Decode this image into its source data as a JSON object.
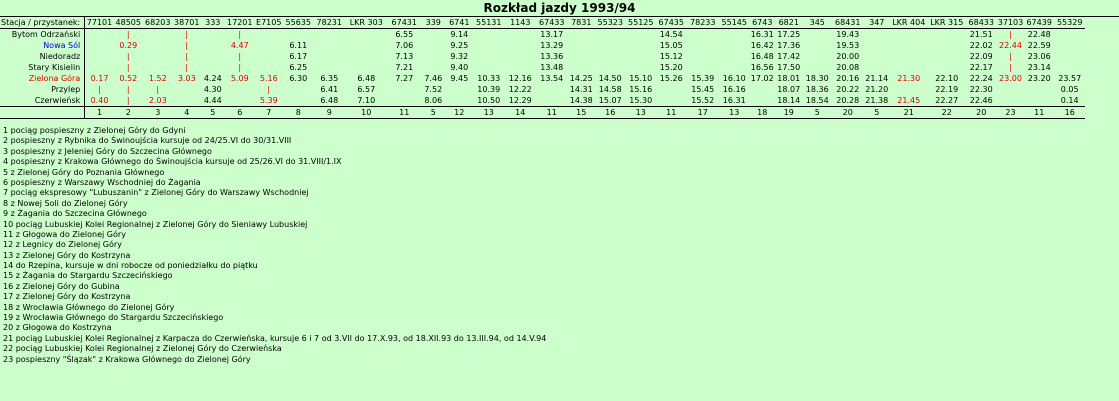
{
  "title": "Rozkład jazdy 1993/94",
  "header_label": "Stacja / przystanek:",
  "trains": [
    "77101",
    "48505",
    "68203",
    "38701",
    "333",
    "17201",
    "E7105",
    "55635",
    "78231",
    "LKR 303",
    "67431",
    "339",
    "6741",
    "55131",
    "1143",
    "67433",
    "7831",
    "55323",
    "55125",
    "67435",
    "78233",
    "55145",
    "6743",
    "6821",
    "345",
    "68431",
    "347",
    "LKR 404",
    "LKR 315",
    "68433",
    "37103",
    "67439",
    "55329"
  ],
  "footnote_refs": [
    "1",
    "2",
    "3",
    "4",
    "5",
    "6",
    "7",
    "8",
    "9",
    "10",
    "11",
    "5",
    "12",
    "13",
    "14",
    "11",
    "15",
    "16",
    "13",
    "11",
    "17",
    "13",
    "18",
    "19",
    "5",
    "20",
    "5",
    "21",
    "22",
    "20",
    "23",
    "11",
    "16"
  ],
  "stations": [
    {
      "name": "Bytom Odrzański",
      "color": "",
      "cells": [
        {
          "v": ""
        },
        {
          "v": "|",
          "c": "red"
        },
        {
          "v": ""
        },
        {
          "v": "|",
          "c": "red"
        },
        {
          "v": ""
        },
        {
          "v": "|",
          "c": "red"
        },
        {
          "v": ""
        },
        {
          "v": ""
        },
        {
          "v": ""
        },
        {
          "v": ""
        },
        {
          "v": "6.55"
        },
        {
          "v": ""
        },
        {
          "v": "9.14"
        },
        {
          "v": ""
        },
        {
          "v": ""
        },
        {
          "v": "13.17"
        },
        {
          "v": ""
        },
        {
          "v": ""
        },
        {
          "v": ""
        },
        {
          "v": "14.54"
        },
        {
          "v": ""
        },
        {
          "v": ""
        },
        {
          "v": "16.31"
        },
        {
          "v": "17.25"
        },
        {
          "v": ""
        },
        {
          "v": "19.43"
        },
        {
          "v": ""
        },
        {
          "v": ""
        },
        {
          "v": ""
        },
        {
          "v": "21.51"
        },
        {
          "v": "|",
          "c": "red"
        },
        {
          "v": "22.48"
        },
        {
          "v": ""
        }
      ]
    },
    {
      "name": "Nowa Sól",
      "color": "blue",
      "cells": [
        {
          "v": ""
        },
        {
          "v": "0.29",
          "c": "red"
        },
        {
          "v": ""
        },
        {
          "v": "|",
          "c": "red"
        },
        {
          "v": ""
        },
        {
          "v": "4.47",
          "c": "red"
        },
        {
          "v": ""
        },
        {
          "v": "6.11"
        },
        {
          "v": ""
        },
        {
          "v": ""
        },
        {
          "v": "7.06"
        },
        {
          "v": ""
        },
        {
          "v": "9.25"
        },
        {
          "v": ""
        },
        {
          "v": ""
        },
        {
          "v": "13.29"
        },
        {
          "v": ""
        },
        {
          "v": ""
        },
        {
          "v": ""
        },
        {
          "v": "15.05"
        },
        {
          "v": ""
        },
        {
          "v": ""
        },
        {
          "v": "16.42"
        },
        {
          "v": "17.36"
        },
        {
          "v": ""
        },
        {
          "v": "19.53"
        },
        {
          "v": ""
        },
        {
          "v": ""
        },
        {
          "v": ""
        },
        {
          "v": "22.02"
        },
        {
          "v": "22.44",
          "c": "red"
        },
        {
          "v": "22.59"
        },
        {
          "v": ""
        }
      ]
    },
    {
      "name": "Niedoradz",
      "color": "",
      "cells": [
        {
          "v": ""
        },
        {
          "v": "|",
          "c": "red"
        },
        {
          "v": ""
        },
        {
          "v": "|",
          "c": "red"
        },
        {
          "v": ""
        },
        {
          "v": "|",
          "c": "red"
        },
        {
          "v": ""
        },
        {
          "v": "6.17"
        },
        {
          "v": ""
        },
        {
          "v": ""
        },
        {
          "v": "7.13"
        },
        {
          "v": ""
        },
        {
          "v": "9.32"
        },
        {
          "v": ""
        },
        {
          "v": ""
        },
        {
          "v": "13.36"
        },
        {
          "v": ""
        },
        {
          "v": ""
        },
        {
          "v": ""
        },
        {
          "v": "15.12"
        },
        {
          "v": ""
        },
        {
          "v": ""
        },
        {
          "v": "16.48"
        },
        {
          "v": "17.42"
        },
        {
          "v": ""
        },
        {
          "v": "20.00"
        },
        {
          "v": ""
        },
        {
          "v": ""
        },
        {
          "v": ""
        },
        {
          "v": "22.09"
        },
        {
          "v": "|",
          "c": "red"
        },
        {
          "v": "23.06"
        },
        {
          "v": ""
        }
      ]
    },
    {
      "name": "Stary Kisielin",
      "color": "",
      "cells": [
        {
          "v": ""
        },
        {
          "v": "|",
          "c": "red"
        },
        {
          "v": ""
        },
        {
          "v": "|",
          "c": "red"
        },
        {
          "v": ""
        },
        {
          "v": "|",
          "c": "red"
        },
        {
          "v": ""
        },
        {
          "v": "6.25"
        },
        {
          "v": ""
        },
        {
          "v": ""
        },
        {
          "v": "7.21"
        },
        {
          "v": ""
        },
        {
          "v": "9.40"
        },
        {
          "v": ""
        },
        {
          "v": ""
        },
        {
          "v": "13.48"
        },
        {
          "v": ""
        },
        {
          "v": ""
        },
        {
          "v": ""
        },
        {
          "v": "15.20"
        },
        {
          "v": ""
        },
        {
          "v": ""
        },
        {
          "v": "16.56"
        },
        {
          "v": "17.50"
        },
        {
          "v": ""
        },
        {
          "v": "20.08"
        },
        {
          "v": ""
        },
        {
          "v": ""
        },
        {
          "v": ""
        },
        {
          "v": "22.17"
        },
        {
          "v": "|",
          "c": "red"
        },
        {
          "v": "23.14"
        },
        {
          "v": ""
        }
      ]
    },
    {
      "name": "Zielona Góra",
      "color": "red",
      "cells": [
        {
          "v": "0.17",
          "c": "red"
        },
        {
          "v": "0.52",
          "c": "red"
        },
        {
          "v": "1.52",
          "c": "red"
        },
        {
          "v": "3.03",
          "c": "red"
        },
        {
          "v": "4.24"
        },
        {
          "v": "5.09",
          "c": "red"
        },
        {
          "v": "5.16",
          "c": "red"
        },
        {
          "v": "6.30"
        },
        {
          "v": "6.35"
        },
        {
          "v": "6.48"
        },
        {
          "v": "7.27"
        },
        {
          "v": "7.46"
        },
        {
          "v": "9.45"
        },
        {
          "v": "10.33"
        },
        {
          "v": "12.16"
        },
        {
          "v": "13.54"
        },
        {
          "v": "14.25"
        },
        {
          "v": "14.50"
        },
        {
          "v": "15.10"
        },
        {
          "v": "15.26"
        },
        {
          "v": "15.39"
        },
        {
          "v": "16.10"
        },
        {
          "v": "17.02"
        },
        {
          "v": "18.01"
        },
        {
          "v": "18.30"
        },
        {
          "v": "20.16"
        },
        {
          "v": "21.14"
        },
        {
          "v": "21.30",
          "c": "red"
        },
        {
          "v": "22.10"
        },
        {
          "v": "22.24"
        },
        {
          "v": "23.00",
          "c": "red"
        },
        {
          "v": "23.20"
        },
        {
          "v": "23.57"
        }
      ]
    },
    {
      "name": "Przylep",
      "color": "",
      "cells": [
        {
          "v": "|",
          "c": "red"
        },
        {
          "v": "|",
          "c": "red"
        },
        {
          "v": "|",
          "c": "red"
        },
        {
          "v": ""
        },
        {
          "v": "4.30"
        },
        {
          "v": ""
        },
        {
          "v": "|",
          "c": "red"
        },
        {
          "v": ""
        },
        {
          "v": "6.41"
        },
        {
          "v": "6.57"
        },
        {
          "v": ""
        },
        {
          "v": "7.52"
        },
        {
          "v": ""
        },
        {
          "v": "10.39"
        },
        {
          "v": "12.22"
        },
        {
          "v": ""
        },
        {
          "v": "14.31"
        },
        {
          "v": "14.58"
        },
        {
          "v": "15.16"
        },
        {
          "v": ""
        },
        {
          "v": "15.45"
        },
        {
          "v": "16.16"
        },
        {
          "v": ""
        },
        {
          "v": "18.07"
        },
        {
          "v": "18.36"
        },
        {
          "v": "20.22"
        },
        {
          "v": "21.20"
        },
        {
          "v": ""
        },
        {
          "v": "22.19"
        },
        {
          "v": "22.30"
        },
        {
          "v": ""
        },
        {
          "v": ""
        },
        {
          "v": "0.05"
        }
      ]
    },
    {
      "name": "Czerwieńsk",
      "color": "",
      "cells": [
        {
          "v": "0.40",
          "c": "red"
        },
        {
          "v": "|",
          "c": "red"
        },
        {
          "v": "2.03",
          "c": "red"
        },
        {
          "v": ""
        },
        {
          "v": "4.44"
        },
        {
          "v": ""
        },
        {
          "v": "5.39",
          "c": "red"
        },
        {
          "v": ""
        },
        {
          "v": "6.48"
        },
        {
          "v": "7.10"
        },
        {
          "v": ""
        },
        {
          "v": "8.06"
        },
        {
          "v": ""
        },
        {
          "v": "10.50"
        },
        {
          "v": "12.29"
        },
        {
          "v": ""
        },
        {
          "v": "14.38"
        },
        {
          "v": "15.07"
        },
        {
          "v": "15.30"
        },
        {
          "v": ""
        },
        {
          "v": "15.52"
        },
        {
          "v": "16.31"
        },
        {
          "v": ""
        },
        {
          "v": "18.14"
        },
        {
          "v": "18.54"
        },
        {
          "v": "20.28"
        },
        {
          "v": "21.38"
        },
        {
          "v": "21.45",
          "c": "red"
        },
        {
          "v": "22.27"
        },
        {
          "v": "22.46"
        },
        {
          "v": ""
        },
        {
          "v": ""
        },
        {
          "v": "0.14"
        }
      ]
    }
  ],
  "notes": [
    "1 pociąg pospieszny z Zielonej Góry do Gdyni",
    "2 pospieszny z Rybnika do Świnoujścia kursuje od 24/25.VI do 30/31.VIII",
    "3 pospieszny z Jeleniej Góry do Szczecina Głównego",
    "4 pospieszny z Krakowa Głównego do Świnoujścia kursuje od 25/26.VI do 31.VIII/1.IX",
    "5 z Zielonej Góry do Poznania Głównego",
    "6 pospieszny z Warszawy Wschodniej do Żagania",
    "7 pociąg ekspresowy \"Lubuszanin\" z Zielonej Góry do Warszawy Wschodniej",
    "8 z Nowej Soli do Zielonej Góry",
    "9 z Żagania do Szczecina Głównego",
    "10 pociąg Lubuskiej Kolei Regionalnej z Zielonej Góry do Sieniawy Lubuskiej",
    "11 z Głogowa do Zielonej Góry",
    "12 z Legnicy do Zielonej Góry",
    "13 z Zielonej Góry do Kostrzyna",
    "14 do Rzepina, kursuje w dni robocze od poniedziałku do piątku",
    "15 z Żagania do Stargardu Szczecińskiego",
    "16 z Zielonej Góry do Gubina",
    "17 z Zielonej Góry do Kostrzyna",
    "18 z Wrocławia Głównego do Zielonej Góry",
    "19 z Wrocławia Głównego do Stargardu Szczecińskiego",
    "20 z Głogowa do Kostrzyna",
    "21 pociąg Lubuskiej Kolei Regionalnej z Karpacza do Czerwieńska, kursuje 6 i 7 od 3.VII do 17.X.93, od 18.XII.93 do 13.III.94, od 14.V.94",
    "22 pociąg Lubuskiej Kolei Regionalnej z Zielonej Góry do Czerwieńska",
    "23 pospieszny \"Ślązak\" z Krakowa Głównego do Zielonej Góry"
  ]
}
